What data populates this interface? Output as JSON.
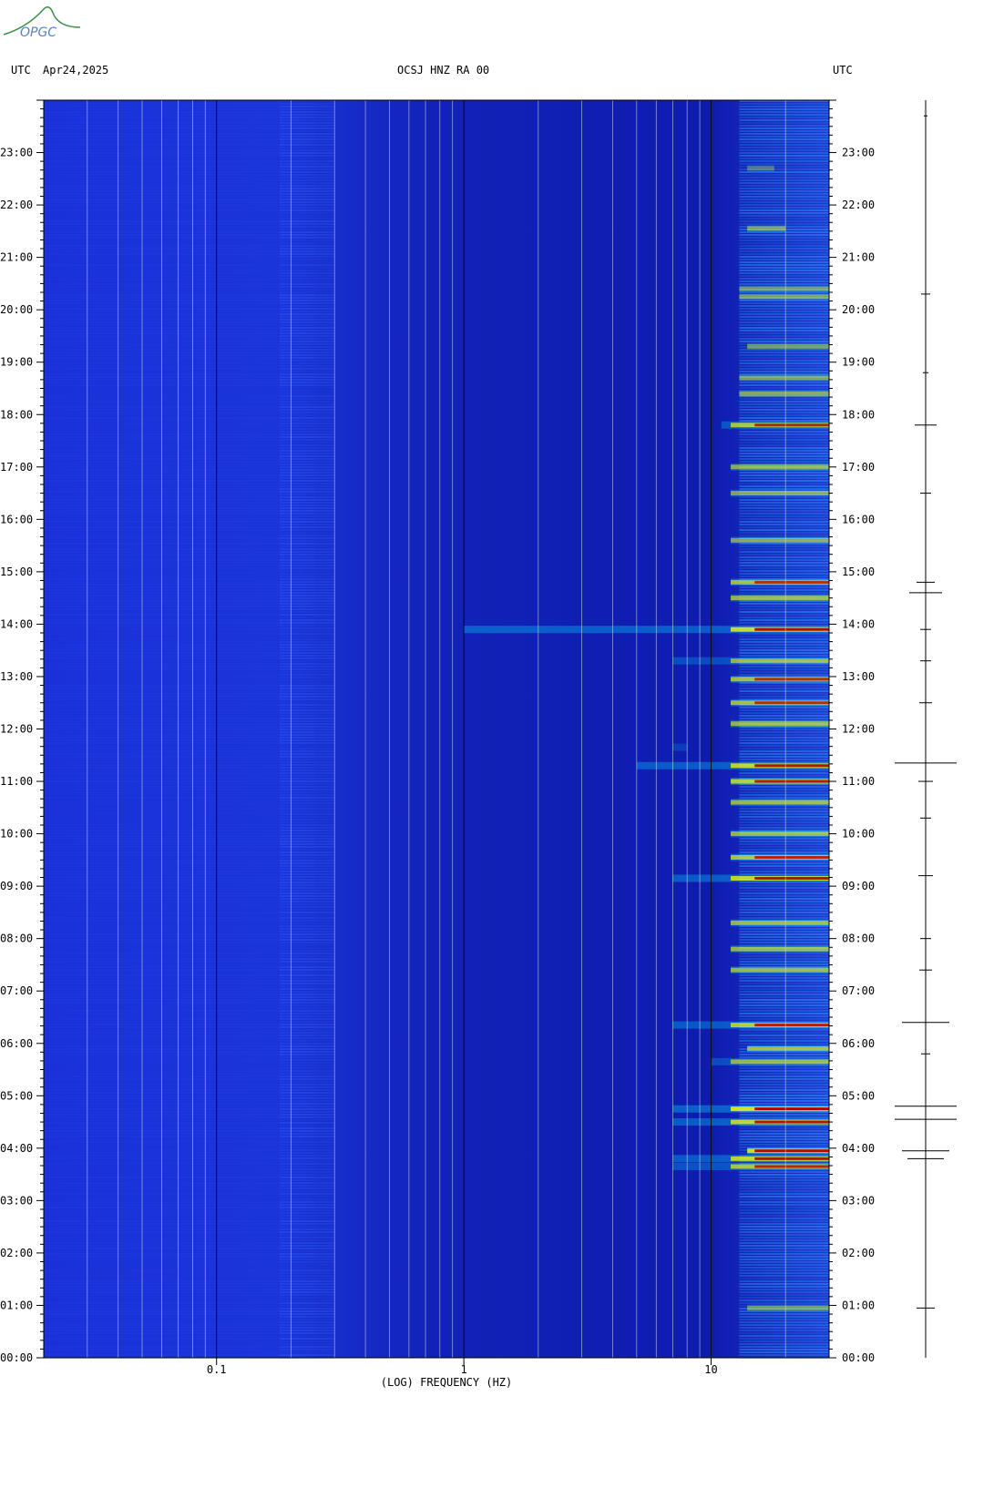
{
  "header": {
    "left_utc": "UTC",
    "date": "Apr24,2025",
    "station": "OCSJ HNZ RA 00",
    "right_utc": "UTC"
  },
  "logo": {
    "text": "OPGC",
    "color": "#3a8f4a"
  },
  "chart_data": {
    "type": "heatmap",
    "title": "OCSJ HNZ RA 00",
    "xlabel": "(LOG) FREQUENCY (HZ)",
    "x_scale": "log",
    "xlim": [
      0.02,
      30
    ],
    "x_ticks": [
      {
        "value": 0.1,
        "label": "0.1"
      },
      {
        "value": 1,
        "label": "1"
      },
      {
        "value": 10,
        "label": "10"
      }
    ],
    "y_ticks": [
      {
        "hour": 0,
        "label": "00:00"
      },
      {
        "hour": 1,
        "label": "01:00"
      },
      {
        "hour": 2,
        "label": "02:00"
      },
      {
        "hour": 3,
        "label": "03:00"
      },
      {
        "hour": 4,
        "label": "04:00"
      },
      {
        "hour": 5,
        "label": "05:00"
      },
      {
        "hour": 6,
        "label": "06:00"
      },
      {
        "hour": 7,
        "label": "07:00"
      },
      {
        "hour": 8,
        "label": "08:00"
      },
      {
        "hour": 9,
        "label": "09:00"
      },
      {
        "hour": 10,
        "label": "10:00"
      },
      {
        "hour": 11,
        "label": "11:00"
      },
      {
        "hour": 12,
        "label": "12:00"
      },
      {
        "hour": 13,
        "label": "13:00"
      },
      {
        "hour": 14,
        "label": "14:00"
      },
      {
        "hour": 15,
        "label": "15:00"
      },
      {
        "hour": 16,
        "label": "16:00"
      },
      {
        "hour": 17,
        "label": "17:00"
      },
      {
        "hour": 18,
        "label": "18:00"
      },
      {
        "hour": 19,
        "label": "19:00"
      },
      {
        "hour": 20,
        "label": "20:00"
      },
      {
        "hour": 21,
        "label": "21:00"
      },
      {
        "hour": 22,
        "label": "22:00"
      },
      {
        "hour": 23,
        "label": "23:00"
      }
    ],
    "ylim_hours": [
      0,
      24
    ],
    "colors": {
      "background": "#1428c8",
      "low": "#0a1aa8",
      "mid": "#00e0ff",
      "high": "#ffff00",
      "peak": "#b00000"
    },
    "band_events": [
      {
        "hour": 3.65,
        "fmin": 7,
        "fmax": 30,
        "intensity": 0.8
      },
      {
        "hour": 3.8,
        "fmin": 7,
        "fmax": 30,
        "intensity": 0.9
      },
      {
        "hour": 3.95,
        "fmin": 14,
        "fmax": 30,
        "intensity": 0.95
      },
      {
        "hour": 4.5,
        "fmin": 7,
        "fmax": 30,
        "intensity": 0.9
      },
      {
        "hour": 4.75,
        "fmin": 7,
        "fmax": 30,
        "intensity": 1.0
      },
      {
        "hour": 5.65,
        "fmin": 10,
        "fmax": 30,
        "intensity": 0.7
      },
      {
        "hour": 5.9,
        "fmin": 14,
        "fmax": 30,
        "intensity": 0.7
      },
      {
        "hour": 6.35,
        "fmin": 7,
        "fmax": 30,
        "intensity": 0.85
      },
      {
        "hour": 7.4,
        "fmin": 12,
        "fmax": 30,
        "intensity": 0.7
      },
      {
        "hour": 7.8,
        "fmin": 12,
        "fmax": 30,
        "intensity": 0.7
      },
      {
        "hour": 8.3,
        "fmin": 12,
        "fmax": 30,
        "intensity": 0.7
      },
      {
        "hour": 9.15,
        "fmin": 7,
        "fmax": 30,
        "intensity": 0.9
      },
      {
        "hour": 9.55,
        "fmin": 12,
        "fmax": 30,
        "intensity": 0.8
      },
      {
        "hour": 10.0,
        "fmin": 12,
        "fmax": 30,
        "intensity": 0.7
      },
      {
        "hour": 10.6,
        "fmin": 12,
        "fmax": 30,
        "intensity": 0.7
      },
      {
        "hour": 11.0,
        "fmin": 12,
        "fmax": 30,
        "intensity": 0.85
      },
      {
        "hour": 11.3,
        "fmin": 5,
        "fmax": 30,
        "intensity": 0.9
      },
      {
        "hour": 11.65,
        "fmin": 7,
        "fmax": 8,
        "intensity": 0.5
      },
      {
        "hour": 12.1,
        "fmin": 12,
        "fmax": 30,
        "intensity": 0.7
      },
      {
        "hour": 12.5,
        "fmin": 12,
        "fmax": 30,
        "intensity": 0.75
      },
      {
        "hour": 12.95,
        "fmin": 12,
        "fmax": 30,
        "intensity": 0.75
      },
      {
        "hour": 13.3,
        "fmin": 7,
        "fmax": 30,
        "intensity": 0.7
      },
      {
        "hour": 13.9,
        "fmin": 1,
        "fmax": 30,
        "intensity": 0.95
      },
      {
        "hour": 14.5,
        "fmin": 12,
        "fmax": 30,
        "intensity": 0.7
      },
      {
        "hour": 14.8,
        "fmin": 12,
        "fmax": 30,
        "intensity": 0.75
      },
      {
        "hour": 15.6,
        "fmin": 12,
        "fmax": 30,
        "intensity": 0.6
      },
      {
        "hour": 16.5,
        "fmin": 12,
        "fmax": 30,
        "intensity": 0.6
      },
      {
        "hour": 17.0,
        "fmin": 12,
        "fmax": 30,
        "intensity": 0.65
      },
      {
        "hour": 17.8,
        "fmin": 11,
        "fmax": 30,
        "intensity": 0.8
      },
      {
        "hour": 18.4,
        "fmin": 13,
        "fmax": 30,
        "intensity": 0.6
      },
      {
        "hour": 18.7,
        "fmin": 13,
        "fmax": 30,
        "intensity": 0.55
      },
      {
        "hour": 19.3,
        "fmin": 14,
        "fmax": 30,
        "intensity": 0.5
      },
      {
        "hour": 20.25,
        "fmin": 13,
        "fmax": 30,
        "intensity": 0.55
      },
      {
        "hour": 20.4,
        "fmin": 13,
        "fmax": 30,
        "intensity": 0.5
      },
      {
        "hour": 21.55,
        "fmin": 14,
        "fmax": 20,
        "intensity": 0.55
      },
      {
        "hour": 22.7,
        "fmin": 14,
        "fmax": 18,
        "intensity": 0.35
      },
      {
        "hour": 0.95,
        "fmin": 14,
        "fmax": 30,
        "intensity": 0.5
      }
    ],
    "seismogram_events": [
      {
        "hour": 23.7,
        "amp": 2
      },
      {
        "hour": 20.3,
        "amp": 5
      },
      {
        "hour": 18.8,
        "amp": 3
      },
      {
        "hour": 17.8,
        "amp": 12
      },
      {
        "hour": 16.5,
        "amp": 6
      },
      {
        "hour": 14.8,
        "amp": 10
      },
      {
        "hour": 14.6,
        "amp": 18
      },
      {
        "hour": 13.9,
        "amp": 6
      },
      {
        "hour": 13.3,
        "amp": 6
      },
      {
        "hour": 12.5,
        "amp": 7
      },
      {
        "hour": 11.35,
        "amp": 34
      },
      {
        "hour": 11.0,
        "amp": 8
      },
      {
        "hour": 10.3,
        "amp": 6
      },
      {
        "hour": 9.2,
        "amp": 8
      },
      {
        "hour": 8.0,
        "amp": 6
      },
      {
        "hour": 7.4,
        "amp": 7
      },
      {
        "hour": 6.4,
        "amp": 26
      },
      {
        "hour": 5.8,
        "amp": 5
      },
      {
        "hour": 4.8,
        "amp": 34
      },
      {
        "hour": 4.55,
        "amp": 34
      },
      {
        "hour": 3.95,
        "amp": 26
      },
      {
        "hour": 3.8,
        "amp": 20
      },
      {
        "hour": 0.95,
        "amp": 10
      }
    ]
  }
}
